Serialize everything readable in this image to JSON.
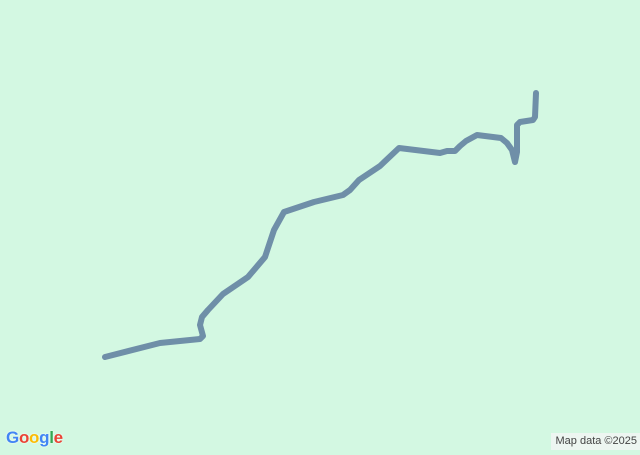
{
  "map": {
    "background_color": "#d3f8e2",
    "route_color": "#6f8fa8",
    "logo": {
      "text": "Google",
      "letters": [
        "G",
        "o",
        "o",
        "g",
        "l",
        "e"
      ],
      "colors": [
        "#4285f4",
        "#ea4335",
        "#fbbc05",
        "#4285f4",
        "#34a853",
        "#ea4335"
      ]
    },
    "attribution": "Map data ©2025"
  }
}
